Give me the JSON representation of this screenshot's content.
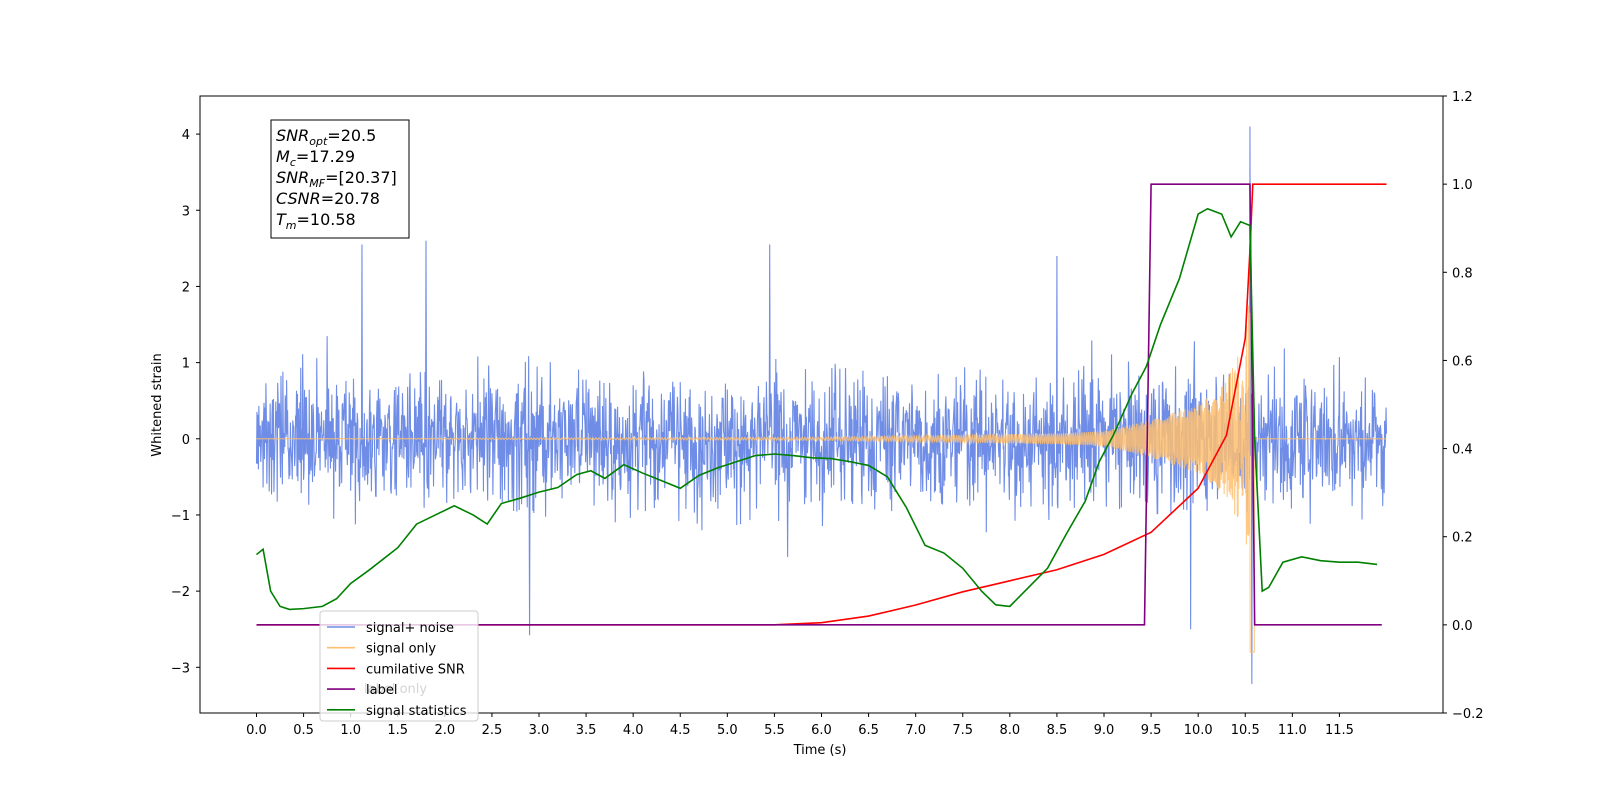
{
  "chart_data": {
    "type": "line",
    "xlabel": "Time (s)",
    "ylabel": "Whitened strain",
    "xlim": [
      -0.6,
      12.6
    ],
    "ylim": [
      -3.6,
      4.5
    ],
    "y2lim": [
      -0.2,
      1.2
    ],
    "x_ticks": [
      0.0,
      0.5,
      1.0,
      1.5,
      2.0,
      2.5,
      3.0,
      3.5,
      4.0,
      4.5,
      5.0,
      5.5,
      6.0,
      6.5,
      7.0,
      7.5,
      8.0,
      8.5,
      9.0,
      9.5,
      10.0,
      10.5,
      11.0,
      11.5
    ],
    "x_tick_labels": [
      "0.0",
      "0.5",
      "1.0",
      "1.5",
      "2.0",
      "2.5",
      "3.0",
      "3.5",
      "4.0",
      "4.5",
      "5.0",
      "5.5",
      "6.0",
      "6.5",
      "7.0",
      "7.5",
      "8.0",
      "8.5",
      "9.0",
      "9.5",
      "10.0",
      "10.5",
      "11.0",
      "11.5"
    ],
    "y_ticks": [
      -3,
      -2,
      -1,
      0,
      1,
      2,
      3,
      4
    ],
    "y_tick_labels": [
      "−3",
      "−2",
      "−1",
      "0",
      "1",
      "2",
      "3",
      "4"
    ],
    "y2_ticks": [
      -0.2,
      0.0,
      0.2,
      0.4,
      0.6,
      0.8,
      1.0,
      1.2
    ],
    "y2_tick_labels": [
      "−0.2",
      "0.0",
      "0.2",
      "0.4",
      "0.6",
      "0.8",
      "1.0",
      "1.2"
    ],
    "grid": false,
    "legend_position": "bottom-left",
    "legend": [
      {
        "label": "signal+ noise",
        "color": "#6f8de6"
      },
      {
        "label": "signal only",
        "color": "#ffbf70"
      },
      {
        "label": "cumilative SNR",
        "color": "#ff0000"
      },
      {
        "label": "label",
        "color": "#800080"
      },
      {
        "label": "signal statistics",
        "color": "#008000"
      }
    ],
    "legend_ghost_text": "label only",
    "annotation": {
      "lines": [
        {
          "sym": "SNR",
          "sub": "opt",
          "rest": "=20.5"
        },
        {
          "sym": "M",
          "sub": "c",
          "rest": "=17.29"
        },
        {
          "sym": "SNR",
          "sub": "MF",
          "rest": "=[20.37]"
        },
        {
          "sym": "CSNR",
          "sub": "",
          "rest": "=20.78"
        },
        {
          "sym": "T",
          "sub": "m",
          "rest": "=10.58"
        }
      ]
    },
    "series": [
      {
        "name": "signal+ noise",
        "axis": "left",
        "color": "#6f8de6",
        "style": "dense-noise",
        "x_range": [
          0.0,
          12.0
        ],
        "envelope_upper": 1.6,
        "envelope_lower": -1.6,
        "spikes": [
          [
            1.12,
            2.55
          ],
          [
            1.8,
            2.6
          ],
          [
            2.9,
            -2.58
          ],
          [
            5.45,
            2.55
          ],
          [
            8.5,
            2.4
          ],
          [
            10.55,
            4.1
          ],
          [
            10.57,
            -3.22
          ],
          [
            9.92,
            -2.5
          ]
        ]
      },
      {
        "name": "signal only",
        "axis": "left",
        "color": "#ffbf70",
        "style": "chirp",
        "x": [
          0.0,
          6.0,
          8.5,
          9.0,
          9.5,
          10.0,
          10.3,
          10.5,
          10.58,
          10.6,
          12.0
        ],
        "amplitude": [
          0.0,
          0.02,
          0.07,
          0.1,
          0.25,
          0.45,
          0.75,
          1.3,
          2.3,
          0.0,
          0.0
        ],
        "final_dip": -2.8
      },
      {
        "name": "cumilative SNR",
        "axis": "right",
        "color": "#ff0000",
        "x": [
          0.0,
          5.5,
          6.0,
          6.5,
          7.0,
          7.5,
          8.0,
          8.5,
          9.0,
          9.5,
          10.0,
          10.3,
          10.5,
          10.55,
          10.58,
          12.0
        ],
        "y": [
          0.0,
          0.0,
          0.005,
          0.02,
          0.045,
          0.075,
          0.1,
          0.125,
          0.16,
          0.21,
          0.31,
          0.43,
          0.65,
          0.85,
          1.0,
          1.0
        ]
      },
      {
        "name": "label",
        "axis": "right",
        "color": "#800080",
        "x": [
          0.0,
          9.43,
          9.5,
          10.55,
          10.6,
          11.95
        ],
        "y": [
          0.0,
          0.0,
          1.0,
          1.0,
          0.0,
          0.0
        ]
      },
      {
        "name": "signal statistics",
        "axis": "left",
        "color": "#008000",
        "x": [
          0.0,
          0.07,
          0.15,
          0.25,
          0.35,
          0.5,
          0.7,
          0.85,
          1.0,
          1.2,
          1.5,
          1.7,
          1.9,
          2.1,
          2.3,
          2.45,
          2.6,
          2.8,
          3.0,
          3.2,
          3.4,
          3.55,
          3.7,
          3.9,
          4.1,
          4.3,
          4.5,
          4.7,
          4.9,
          5.1,
          5.3,
          5.5,
          5.7,
          5.9,
          6.1,
          6.3,
          6.5,
          6.7,
          6.9,
          7.1,
          7.3,
          7.5,
          7.7,
          7.85,
          8.0,
          8.2,
          8.4,
          8.6,
          8.8,
          8.95,
          9.1,
          9.3,
          9.45,
          9.6,
          9.8,
          10.0,
          10.1,
          10.25,
          10.35,
          10.45,
          10.55,
          10.6,
          10.68,
          10.75,
          10.9,
          11.1,
          11.3,
          11.5,
          11.7,
          11.9
        ],
        "y": [
          -1.52,
          -1.45,
          -2.0,
          -2.2,
          -2.24,
          -2.23,
          -2.2,
          -2.1,
          -1.9,
          -1.72,
          -1.43,
          -1.12,
          -1.0,
          -0.88,
          -1.0,
          -1.12,
          -0.85,
          -0.78,
          -0.7,
          -0.64,
          -0.47,
          -0.42,
          -0.52,
          -0.34,
          -0.45,
          -0.55,
          -0.65,
          -0.48,
          -0.38,
          -0.3,
          -0.22,
          -0.2,
          -0.22,
          -0.25,
          -0.26,
          -0.3,
          -0.35,
          -0.5,
          -0.9,
          -1.4,
          -1.5,
          -1.7,
          -2.0,
          -2.18,
          -2.2,
          -1.95,
          -1.7,
          -1.25,
          -0.82,
          -0.3,
          0.05,
          0.6,
          0.95,
          1.5,
          2.1,
          2.95,
          3.02,
          2.95,
          2.65,
          2.85,
          2.8,
          0.0,
          -2.0,
          -1.95,
          -1.62,
          -1.55,
          -1.6,
          -1.62,
          -1.62,
          -1.65
        ]
      }
    ]
  }
}
